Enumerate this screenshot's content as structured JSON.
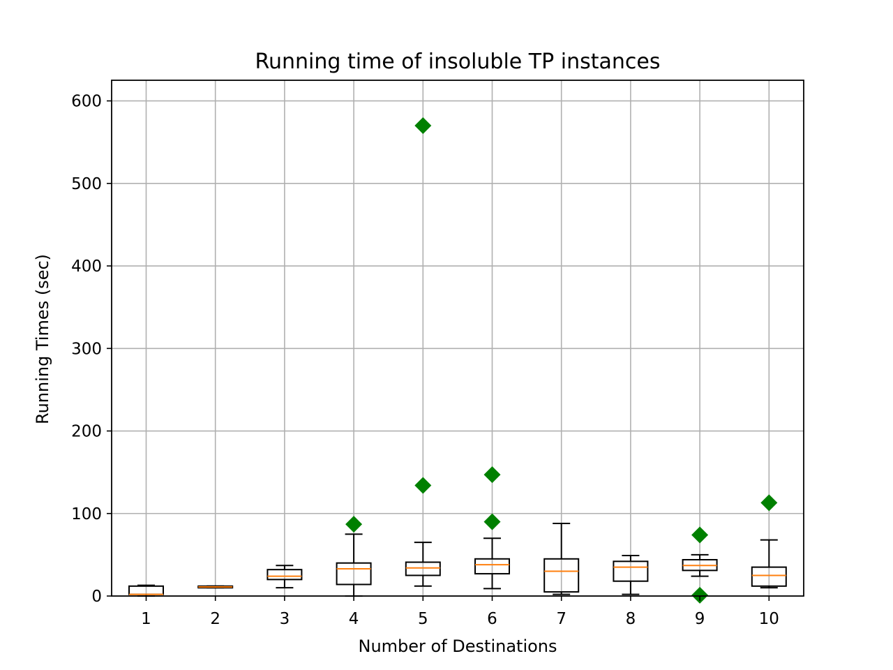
{
  "chart_data": {
    "type": "box",
    "title": "Running time of insoluble TP instances",
    "xlabel": "Number of Destinations",
    "ylabel": "Running Times (sec)",
    "ylim": [
      0,
      625
    ],
    "yticks": [
      0,
      100,
      200,
      300,
      400,
      500,
      600
    ],
    "grid": true,
    "categories": [
      "1",
      "2",
      "3",
      "4",
      "5",
      "6",
      "7",
      "8",
      "9",
      "10"
    ],
    "boxes": [
      {
        "category": "1",
        "whisker_low": 0,
        "q1": 2,
        "median": 2,
        "q3": 12,
        "whisker_high": 13,
        "outliers": []
      },
      {
        "category": "2",
        "whisker_low": 10,
        "q1": 10,
        "median": 11,
        "q3": 12,
        "whisker_high": 12,
        "outliers": []
      },
      {
        "category": "3",
        "whisker_low": 10,
        "q1": 20,
        "median": 24,
        "q3": 32,
        "whisker_high": 37,
        "outliers": []
      },
      {
        "category": "4",
        "whisker_low": 0,
        "q1": 14,
        "median": 33,
        "q3": 40,
        "whisker_high": 75,
        "outliers": [
          87
        ]
      },
      {
        "category": "5",
        "whisker_low": 12,
        "q1": 25,
        "median": 34,
        "q3": 41,
        "whisker_high": 65,
        "outliers": [
          134,
          570
        ]
      },
      {
        "category": "6",
        "whisker_low": 9,
        "q1": 27,
        "median": 38,
        "q3": 45,
        "whisker_high": 70,
        "outliers": [
          90,
          147
        ]
      },
      {
        "category": "7",
        "whisker_low": 2,
        "q1": 5,
        "median": 30,
        "q3": 45,
        "whisker_high": 88,
        "outliers": []
      },
      {
        "category": "8",
        "whisker_low": 2,
        "q1": 18,
        "median": 35,
        "q3": 42,
        "whisker_high": 49,
        "outliers": []
      },
      {
        "category": "9",
        "whisker_low": 24,
        "q1": 31,
        "median": 37,
        "q3": 44,
        "whisker_high": 50,
        "outliers": [
          1,
          74
        ]
      },
      {
        "category": "10",
        "whisker_low": 10,
        "q1": 12,
        "median": 25,
        "q3": 35,
        "whisker_high": 68,
        "outliers": [
          113
        ]
      }
    ],
    "colors": {
      "box": "#000000",
      "median": "#ff7f0e",
      "outlier": "#008000",
      "grid": "#b0b0b0"
    },
    "outlier_marker": "diamond"
  }
}
